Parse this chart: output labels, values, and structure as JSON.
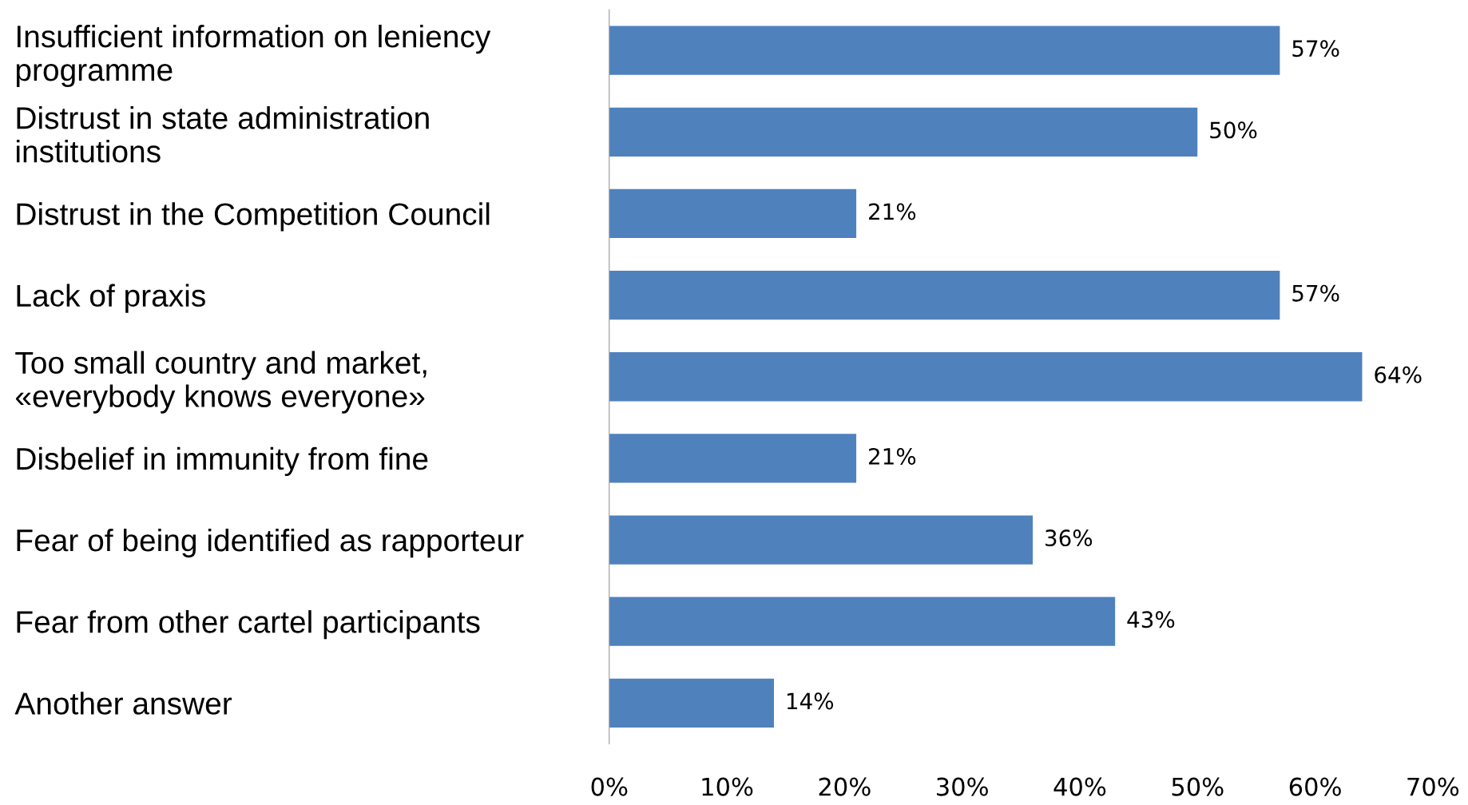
{
  "chart_data": {
    "type": "bar",
    "orientation": "horizontal",
    "categories": [
      "Insufficient information on leniency\nprogramme",
      "Distrust in state administration\ninstitutions",
      "Distrust in the Competition Council",
      "Lack of praxis",
      "Too small country and market,\n«everybody knows everyone»",
      "Disbelief in immunity from fine",
      "Fear of being identified as rapporteur",
      "Fear from other cartel participants",
      "Another answer"
    ],
    "values": [
      57,
      50,
      21,
      57,
      64,
      21,
      36,
      43,
      14
    ],
    "value_labels": [
      "57%",
      "50%",
      "21%",
      "57%",
      "64%",
      "21%",
      "36%",
      "43%",
      "14%"
    ],
    "color": "#4f81bd",
    "xlim": [
      0,
      70
    ],
    "xticks": [
      {
        "value": 0,
        "label": "0%"
      },
      {
        "value": 10,
        "label": "10%"
      },
      {
        "value": 20,
        "label": "20%"
      },
      {
        "value": 30,
        "label": "30%"
      },
      {
        "value": 40,
        "label": "40%"
      },
      {
        "value": 50,
        "label": "50%"
      },
      {
        "value": 60,
        "label": "60%"
      },
      {
        "value": 70,
        "label": "70%"
      }
    ],
    "grid": false
  }
}
